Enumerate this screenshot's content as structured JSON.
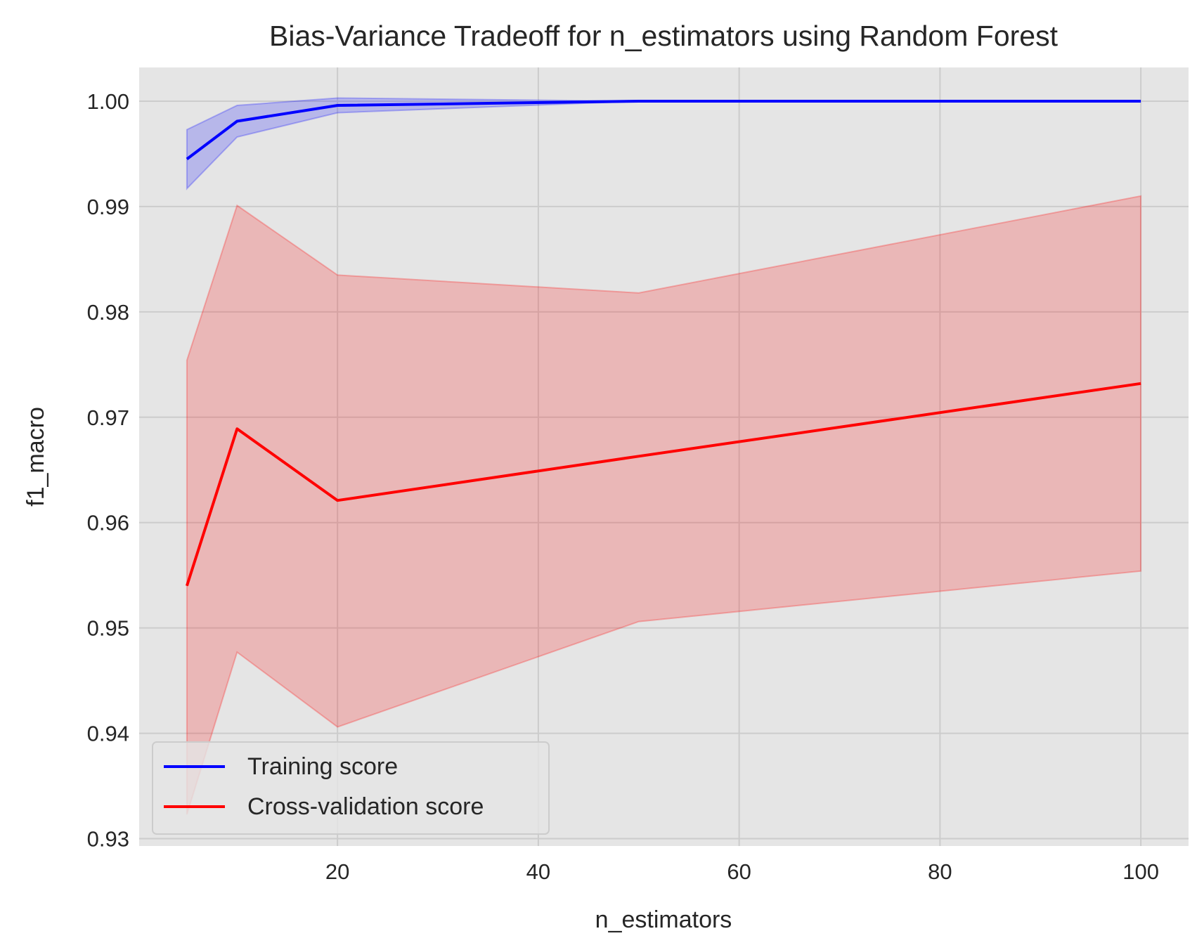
{
  "chart_data": {
    "type": "line",
    "title": "Bias-Variance Tradeoff for n_estimators using Random Forest",
    "xlabel": "n_estimators",
    "ylabel": "f1_macro",
    "xlim": [
      0.25,
      104.75
    ],
    "ylim": [
      0.9293,
      1.0032
    ],
    "xticks": [
      20,
      40,
      60,
      80,
      100
    ],
    "xtick_labels": [
      "20",
      "40",
      "60",
      "80",
      "100"
    ],
    "yticks": [
      0.93,
      0.94,
      0.95,
      0.96,
      0.97,
      0.98,
      0.99,
      1.0
    ],
    "ytick_labels": [
      "0.93",
      "0.94",
      "0.95",
      "0.96",
      "0.97",
      "0.98",
      "0.99",
      "1.00"
    ],
    "grid": true,
    "legend_position": "lower-left",
    "x": [
      5,
      10,
      20,
      50,
      100
    ],
    "series": [
      {
        "name": "Training score",
        "color": "#0000ff",
        "values": [
          0.9945,
          0.9981,
          0.9996,
          1.0,
          1.0
        ],
        "band_upper": [
          0.9973,
          0.9996,
          1.0003,
          1.0,
          1.0
        ],
        "band_lower": [
          0.9917,
          0.9966,
          0.9989,
          1.0,
          1.0
        ]
      },
      {
        "name": "Cross-validation score",
        "color": "#ff0000",
        "values": [
          0.954,
          0.9689,
          0.9621,
          0.9663,
          0.9732
        ],
        "band_upper": [
          0.9754,
          0.9901,
          0.9835,
          0.9818,
          0.991
        ],
        "band_lower": [
          0.9323,
          0.9477,
          0.9406,
          0.9506,
          0.9554
        ]
      }
    ],
    "colors": {
      "plot_background": "#e5e5e5",
      "grid": "#cccccc",
      "text": "#262626"
    }
  }
}
